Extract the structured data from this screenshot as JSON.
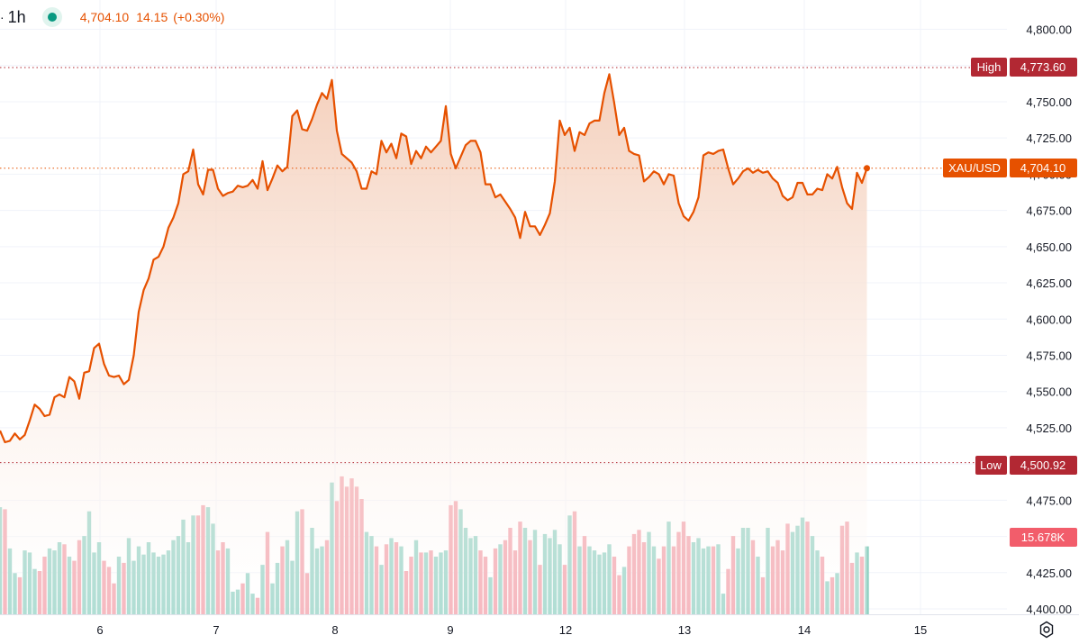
{
  "legend": {
    "separator": "·",
    "interval": "1h",
    "price": "4,704.10",
    "change": "14.15",
    "change_pct": "(+0.30%)"
  },
  "colors": {
    "line": "#e65100",
    "area_top": "#f2c7b0",
    "volume_up": "#8fd0c2",
    "volume_down": "#f29ca6",
    "high_low": "#b22833",
    "grid": "#f0f3fa"
  },
  "price_axis": {
    "min": 4395,
    "max": 4813,
    "ticks": [
      "4,800.00",
      "4,775.00",
      "4,750.00",
      "4,725.00",
      "4,700.00",
      "4,675.00",
      "4,650.00",
      "4,625.00",
      "4,600.00",
      "4,575.00",
      "4,550.00",
      "4,525.00",
      "4,500.00",
      "4,475.00",
      "4,450.00",
      "4,425.00",
      "4,400.00"
    ]
  },
  "markers": {
    "high": {
      "label": "High",
      "value": "4,773.60"
    },
    "symbol": {
      "label": "XAU/USD",
      "value": "4,704.10"
    },
    "low": {
      "label": "Low",
      "value": "4,500.92"
    },
    "volume": {
      "value": "15.678K"
    }
  },
  "chart_data": {
    "type": "line",
    "title": "",
    "symbol": "XAU/USD",
    "interval": "1h",
    "x_tick_labels": [
      "6",
      "7",
      "8",
      "9",
      "12",
      "13",
      "14",
      "15"
    ],
    "high": 4773.6,
    "low": 4500.92,
    "last": 4704.1,
    "y_range": [
      4395,
      4813
    ],
    "series": [
      {
        "values": [
          4523,
          4515,
          4516,
          4521,
          4517,
          4520,
          4530,
          4541,
          4538,
          4533,
          4534,
          4546,
          4548,
          4546,
          4560,
          4557,
          4545,
          4563,
          4564,
          4580,
          4583,
          4569,
          4561,
          4560,
          4561,
          4555,
          4558,
          4575,
          4605,
          4620,
          4628,
          4641,
          4643,
          4650,
          4663,
          4670,
          4680,
          4700,
          4702,
          4717,
          4693,
          4686,
          4703,
          4703,
          4690,
          4685,
          4687,
          4688,
          4692,
          4691,
          4692,
          4696,
          4690,
          4709,
          4689,
          4697,
          4706,
          4702,
          4705,
          4740,
          4744,
          4731,
          4730,
          4738,
          4748,
          4756,
          4752,
          4765,
          4730,
          4714,
          4711,
          4708,
          4702,
          4690,
          4690,
          4702,
          4700,
          4723,
          4715,
          4721,
          4711,
          4728,
          4726,
          4707,
          4716,
          4711,
          4719,
          4715,
          4719,
          4723,
          4747,
          4714,
          4704,
          4712,
          4720,
          4723,
          4723,
          4715,
          4693,
          4693,
          4684,
          4686,
          4681,
          4676,
          4670,
          4656,
          4674,
          4664,
          4664,
          4658,
          4665,
          4673,
          4695,
          4737,
          4727,
          4732,
          4716,
          4729,
          4727,
          4735,
          4737,
          4737,
          4756,
          4769,
          4749,
          4727,
          4732,
          4716,
          4714,
          4713,
          4695,
          4698,
          4702,
          4700,
          4693,
          4700,
          4699,
          4680,
          4671,
          4668,
          4674,
          4684,
          4713,
          4715,
          4714,
          4716,
          4717,
          4704,
          4693,
          4697,
          4702,
          4704,
          4701,
          4703,
          4701,
          4702,
          4697,
          4694,
          4685,
          4682,
          4684,
          4694,
          4694,
          4686,
          4686,
          4690,
          4689,
          4700,
          4697,
          4705,
          4691,
          4680,
          4676,
          4701,
          4694,
          4704.1
        ]
      }
    ],
    "volume": [
      52,
      51,
      32,
      20,
      18,
      31,
      30,
      22,
      21,
      28,
      32,
      31,
      35,
      34,
      28,
      26,
      36,
      38,
      50,
      30,
      35,
      26,
      23,
      15,
      28,
      25,
      37,
      26,
      33,
      29,
      35,
      30,
      28,
      29,
      31,
      36,
      38,
      46,
      35,
      48,
      48,
      53,
      52,
      44,
      31,
      35,
      32,
      11,
      12,
      15,
      20,
      10,
      8,
      24,
      40,
      15,
      25,
      33,
      36,
      26,
      50,
      51,
      20,
      42,
      32,
      33,
      36,
      64,
      55,
      67,
      62,
      66,
      62,
      56,
      40,
      38,
      33,
      24,
      34,
      37,
      35,
      33,
      21,
      28,
      36,
      30,
      30,
      31,
      28,
      30,
      31,
      53,
      55,
      51,
      42,
      37,
      38,
      31,
      28,
      18,
      32,
      34,
      36,
      42,
      31,
      45,
      42,
      36,
      41,
      24,
      39,
      37,
      41,
      34,
      24,
      48,
      50,
      33,
      38,
      33,
      31,
      29,
      30,
      34,
      28,
      19,
      23,
      33,
      39,
      41,
      35,
      40,
      33,
      27,
      33,
      45,
      33,
      40,
      45,
      38,
      35,
      37,
      32,
      33,
      33,
      34,
      10,
      22,
      38,
      32,
      42,
      42,
      36,
      28,
      18,
      42,
      33,
      36,
      31,
      44,
      40,
      43,
      47,
      45,
      38,
      31,
      28,
      16,
      18,
      20,
      43,
      45,
      25,
      30,
      28,
      33
    ]
  }
}
